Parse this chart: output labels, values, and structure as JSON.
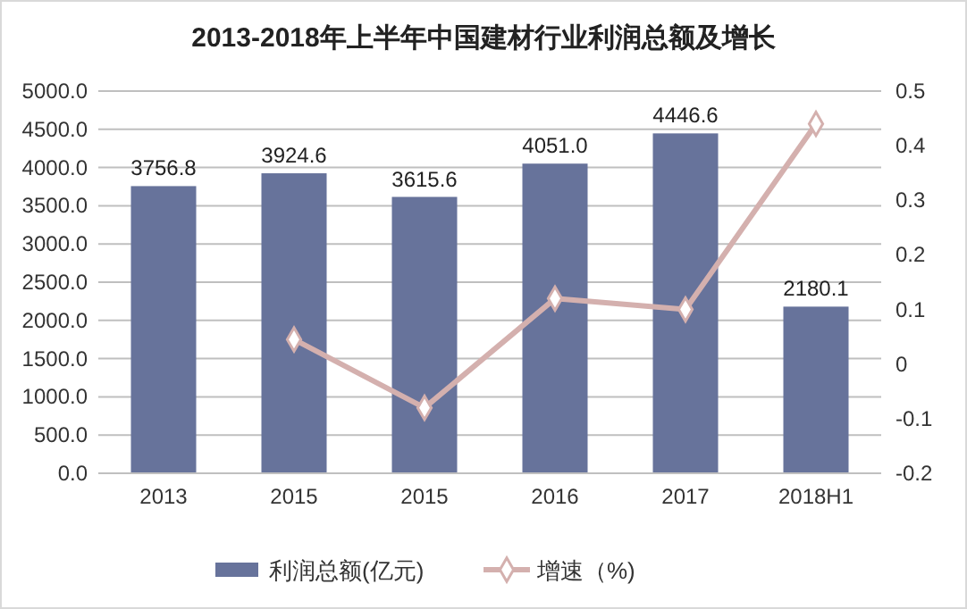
{
  "chart_data": {
    "type": "bar",
    "title": "2013-2018年上半年中国建材行业利润总额及增长",
    "categories": [
      "2013",
      "2015",
      "2015",
      "2016",
      "2017",
      "2018H1"
    ],
    "series": [
      {
        "name": "利润总额(亿元)",
        "color": "#67739b",
        "values": [
          3756.8,
          3924.6,
          3615.6,
          4051.0,
          4446.6,
          2180.1
        ],
        "value_labels": [
          "3756.8",
          "3924.6",
          "3615.6",
          "4051.0",
          "4446.6",
          "2180.1"
        ]
      },
      {
        "name": "增速（%)",
        "type": "line",
        "axis": "y2",
        "color": "#d4b0ae",
        "marker": "diamond",
        "values": [
          null,
          0.045,
          -0.08,
          0.12,
          0.1,
          0.44
        ]
      }
    ],
    "ylim": [
      0,
      5000
    ],
    "yticks": [
      {
        "value": 0,
        "label": "0.0"
      },
      {
        "value": 500,
        "label": "500.0"
      },
      {
        "value": 1000,
        "label": "1000.0"
      },
      {
        "value": 1500,
        "label": "1500.0"
      },
      {
        "value": 2000,
        "label": "2000.0"
      },
      {
        "value": 2500,
        "label": "2500.0"
      },
      {
        "value": 3000,
        "label": "3000.0"
      },
      {
        "value": 3500,
        "label": "3500.0"
      },
      {
        "value": 4000,
        "label": "4000.0"
      },
      {
        "value": 4500,
        "label": "4500.0"
      },
      {
        "value": 5000,
        "label": "5000.0"
      }
    ],
    "y2lim": [
      -0.2,
      0.5
    ],
    "y2ticks": [
      -0.2,
      -0.1,
      0,
      0.1,
      0.2,
      0.3,
      0.4,
      0.5
    ],
    "grid": "y",
    "legend": "bottom"
  }
}
